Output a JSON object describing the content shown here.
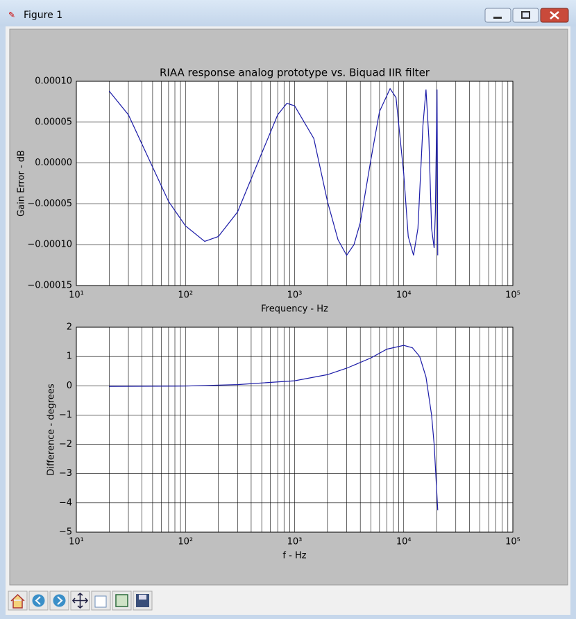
{
  "window": {
    "title": "Figure 1"
  },
  "chart_data": [
    {
      "type": "line",
      "title": "RIAA response analog prototype vs. Biquad IIR filter",
      "xlabel": "Frequency - Hz",
      "ylabel": "Gain Error - dB",
      "xscale": "log",
      "grid": true,
      "xlim": [
        10,
        100000
      ],
      "xticks": [
        {
          "value": 10,
          "label": "10¹"
        },
        {
          "value": 100,
          "label": "10²"
        },
        {
          "value": 1000,
          "label": "10³"
        },
        {
          "value": 10000,
          "label": "10⁴"
        },
        {
          "value": 100000,
          "label": "10⁵"
        }
      ],
      "xminorticks": [
        20,
        30,
        40,
        50,
        60,
        70,
        80,
        90,
        200,
        300,
        400,
        500,
        600,
        700,
        800,
        900,
        2000,
        3000,
        4000,
        5000,
        6000,
        7000,
        8000,
        9000,
        20000,
        30000,
        40000,
        50000,
        60000,
        70000,
        80000,
        90000
      ],
      "ylim": [
        -0.00015,
        0.0001
      ],
      "yticks": [
        {
          "value": -0.00015,
          "label": "−0.00015"
        },
        {
          "value": -0.0001,
          "label": "−0.00010"
        },
        {
          "value": -5e-05,
          "label": "−0.00005"
        },
        {
          "value": 0,
          "label": "0.00000"
        },
        {
          "value": 5e-05,
          "label": "0.00005"
        },
        {
          "value": 0.0001,
          "label": "0.00010"
        }
      ],
      "x": [
        20,
        30,
        50,
        70,
        100,
        150,
        200,
        300,
        500,
        700,
        850,
        1000,
        1500,
        2000,
        2500,
        3000,
        3500,
        4000,
        5000,
        6000,
        7500,
        8500,
        10000,
        11000,
        12300,
        13500,
        15000,
        16000,
        17000,
        18000,
        19000,
        19500,
        20200,
        20500
      ],
      "series": [
        {
          "color": "#1c1ca8",
          "values": [
            8.8e-05,
            5.9e-05,
            -5e-06,
            -4.7e-05,
            -7.7e-05,
            -9.6e-05,
            -9e-05,
            -6e-05,
            1.2e-05,
            5.9e-05,
            7.3e-05,
            7e-05,
            3e-05,
            -4.7e-05,
            -9.4e-05,
            -0.000113,
            -0.0001,
            -7.3e-05,
            4e-06,
            6.3e-05,
            9.1e-05,
            8e-05,
            -1.3e-05,
            -9e-05,
            -0.000113,
            -8e-05,
            4.6e-05,
            9e-05,
            3e-05,
            -8e-05,
            -0.000104,
            -6e-05,
            9e-05,
            -0.000113
          ]
        }
      ]
    },
    {
      "type": "line",
      "xlabel": "f - Hz",
      "ylabel": "Difference - degrees",
      "xscale": "log",
      "grid": true,
      "xlim": [
        10,
        100000
      ],
      "xticks": [
        {
          "value": 10,
          "label": "10¹"
        },
        {
          "value": 100,
          "label": "10²"
        },
        {
          "value": 1000,
          "label": "10³"
        },
        {
          "value": 10000,
          "label": "10⁴"
        },
        {
          "value": 100000,
          "label": "10⁵"
        }
      ],
      "xminorticks": [
        20,
        30,
        40,
        50,
        60,
        70,
        80,
        90,
        200,
        300,
        400,
        500,
        600,
        700,
        800,
        900,
        2000,
        3000,
        4000,
        5000,
        6000,
        7000,
        8000,
        9000,
        20000,
        30000,
        40000,
        50000,
        60000,
        70000,
        80000,
        90000
      ],
      "ylim": [
        -5,
        2
      ],
      "yticks": [
        {
          "value": -5,
          "label": "−5"
        },
        {
          "value": -4,
          "label": "−4"
        },
        {
          "value": -3,
          "label": "−3"
        },
        {
          "value": -2,
          "label": "−2"
        },
        {
          "value": -1,
          "label": "−1"
        },
        0,
        1,
        2
      ],
      "x": [
        20,
        100,
        300,
        1000,
        2000,
        3000,
        5000,
        7000,
        10000,
        12000,
        14000,
        16000,
        18000,
        19000,
        20000,
        20500
      ],
      "series": [
        {
          "color": "#1c1ca8",
          "values": [
            -0.02,
            -0.01,
            0.04,
            0.17,
            0.38,
            0.6,
            0.95,
            1.25,
            1.38,
            1.3,
            1.0,
            0.3,
            -1.0,
            -2.0,
            -3.5,
            -4.25
          ]
        }
      ]
    }
  ]
}
